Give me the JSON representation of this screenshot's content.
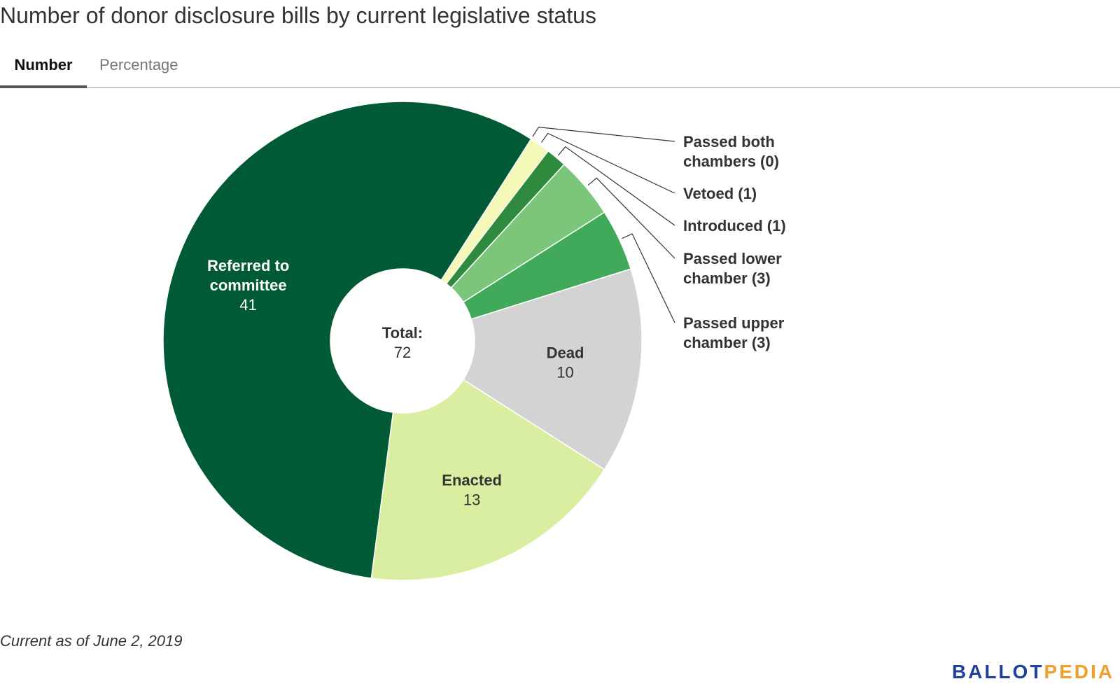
{
  "title": "Number of donor disclosure bills by current legislative status",
  "tabs": [
    {
      "label": "Number",
      "active": true
    },
    {
      "label": "Percentage",
      "active": false
    }
  ],
  "footnote": "Current as of June 2, 2019",
  "logo": {
    "part1": "BALLOT",
    "part2": "PEDIA"
  },
  "colors": {
    "accent_tab_underline": "#555555",
    "logo_blue": "#21409a",
    "logo_orange": "#f0a02a"
  },
  "chart_data": {
    "type": "pie",
    "donut": true,
    "center_label": "Total:",
    "center_value": "72",
    "slices": [
      {
        "label": "Passed both chambers",
        "label_lines": [
          "Passed both",
          "chambers (0)"
        ],
        "value": 0,
        "color": "#1b5e20",
        "label_position": "outside"
      },
      {
        "label": "Vetoed",
        "label_lines": [
          "Vetoed (1)"
        ],
        "value": 1,
        "color": "#f4f9b8",
        "label_position": "outside"
      },
      {
        "label": "Introduced",
        "label_lines": [
          "Introduced (1)"
        ],
        "value": 1,
        "color": "#2e8b3e",
        "label_position": "outside"
      },
      {
        "label": "Passed lower chamber",
        "label_lines": [
          "Passed lower",
          "chamber (3)"
        ],
        "value": 3,
        "color": "#7bc67b",
        "label_position": "outside"
      },
      {
        "label": "Passed upper chamber",
        "label_lines": [
          "Passed upper",
          "chamber (3)"
        ],
        "value": 3,
        "color": "#41aa5a",
        "label_position": "outside"
      },
      {
        "label": "Dead",
        "label_lines": [
          "Dead",
          "10"
        ],
        "value": 10,
        "color": "#d3d3d3",
        "label_position": "inside"
      },
      {
        "label": "Enacted",
        "label_lines": [
          "Enacted",
          "13"
        ],
        "value": 13,
        "color": "#d9eea0",
        "label_position": "inside"
      },
      {
        "label": "Referred to committee",
        "label_lines": [
          "Referred to",
          "committee",
          "41"
        ],
        "value": 41,
        "color": "#005a36",
        "label_position": "inside"
      }
    ]
  }
}
